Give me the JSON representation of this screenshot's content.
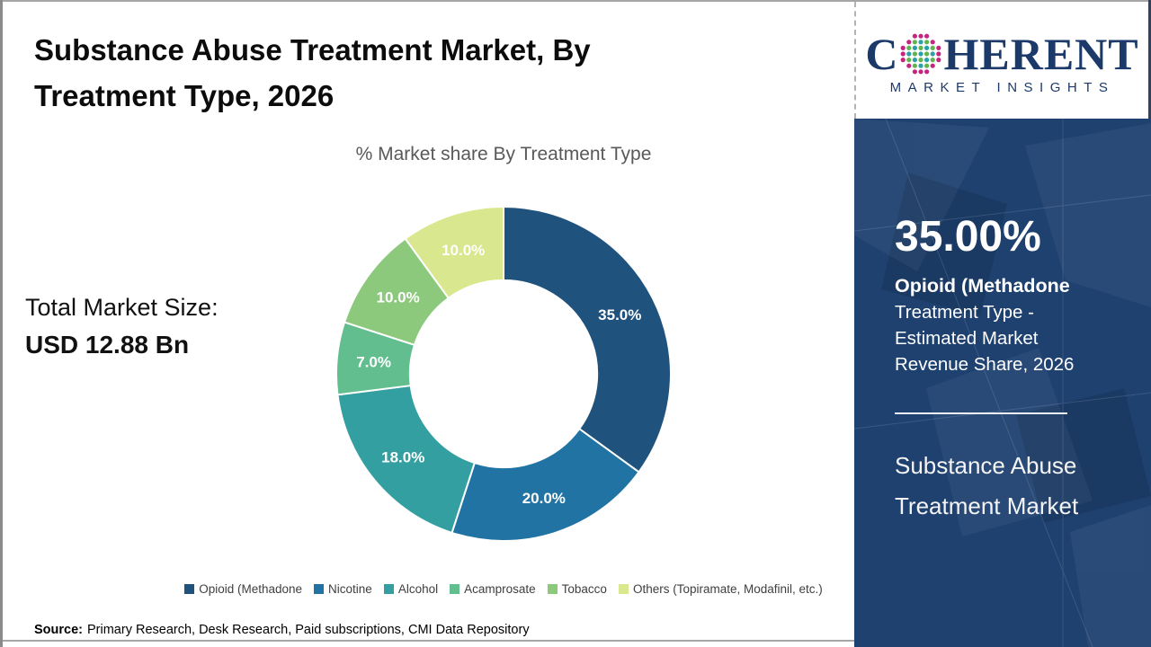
{
  "page": {
    "title": "Substance Abuse Treatment Market, By Treatment Type, 2026",
    "title_lines": [
      "Substance Abuse Treatment Market, By",
      "Treatment Type, 2026"
    ]
  },
  "total_market": {
    "label": "Total Market Size:",
    "value": "USD 12.88 Bn"
  },
  "chart_data": {
    "type": "pie",
    "subtype": "donut",
    "title": "% Market share By Treatment Type",
    "categories": [
      "Opioid (Methadone",
      "Nicotine",
      "Alcohol",
      "Acamprosate",
      "Tobacco",
      "Others (Topiramate, Modafinil, etc.)"
    ],
    "values": [
      35.0,
      20.0,
      18.0,
      7.0,
      10.0,
      10.0
    ],
    "labels": [
      "35.0%",
      "20.0%",
      "18.0%",
      "7.0%",
      "10.0%",
      "10.0%"
    ],
    "colors": [
      "#1F527C",
      "#2173A3",
      "#339FA1",
      "#63BE8F",
      "#8CC97D",
      "#D9E78E"
    ],
    "start_angle_deg": 0,
    "direction": "clockwise",
    "inner_radius_ratio": 0.56,
    "label_color": "#FFFFFF",
    "legend_position": "bottom"
  },
  "source": {
    "label": "Source:",
    "text": "Primary Research, Desk Research, Paid subscriptions, CMI Data Repository"
  },
  "logo": {
    "word_start": "C",
    "word_end": "HERENT",
    "tagline": "MARKET INSIGHTS",
    "brand_color": "#1B3A69",
    "globe_colors": {
      "outer": "#C32581",
      "teal": "#2AA0A8",
      "green": "#62B54D"
    }
  },
  "sidebar": {
    "stat_value": "35.00%",
    "stat_label_bold": "Opioid (Methadone",
    "stat_label_rest": "Treatment Type - Estimated Market Revenue Share, 2026",
    "market_title": "Substance Abuse Treatment Market",
    "background": "#1E4170"
  }
}
